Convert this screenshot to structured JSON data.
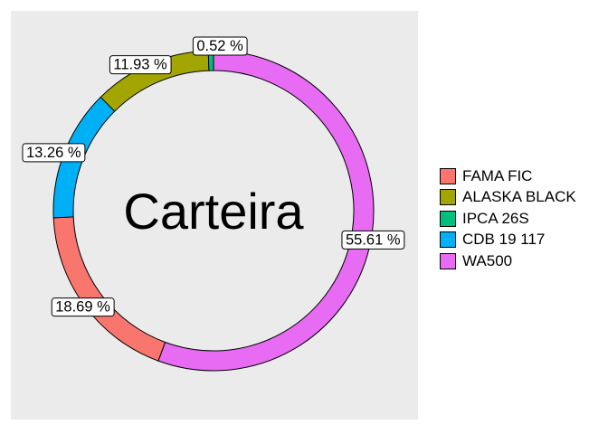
{
  "chart_data": {
    "type": "pie",
    "style": "donut",
    "title": "Carteira",
    "legend_position": "right",
    "slices": [
      {
        "name": "FAMA FIC",
        "value": 18.69,
        "label": "18.69 %",
        "color": "#F8766D"
      },
      {
        "name": "ALASKA BLACK",
        "value": 11.93,
        "label": "11.93 %",
        "color": "#A3A500"
      },
      {
        "name": "IPCA 26S",
        "value": 0.52,
        "label": "0.52 %",
        "color": "#00BF7D"
      },
      {
        "name": "CDB 19 117",
        "value": 13.26,
        "label": "13.26 %",
        "color": "#00B0F6"
      },
      {
        "name": "WA500",
        "value": 55.61,
        "label": "55.61 %",
        "color": "#E76BF3"
      }
    ],
    "panel_background": "#EBEBEB"
  }
}
